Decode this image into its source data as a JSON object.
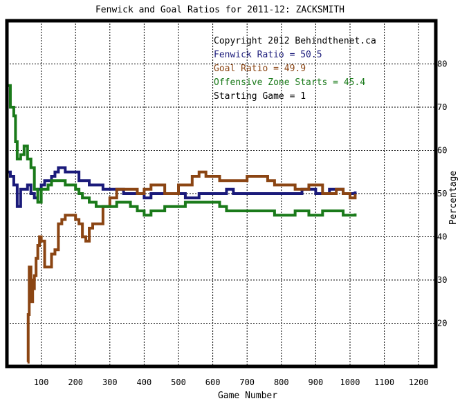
{
  "chart_data": {
    "type": "line",
    "title": "Fenwick and Goal Ratios for 2011-12: ZACKSMITH",
    "xlabel": "Game Number",
    "ylabel": "Percentage",
    "xlim": [
      0,
      1250
    ],
    "ylim": [
      10,
      90
    ],
    "x_ticks": [
      100,
      200,
      300,
      400,
      500,
      600,
      700,
      800,
      900,
      1000,
      1100,
      1200
    ],
    "x_tick_labels": [
      "100",
      "200",
      "300",
      "400",
      "500",
      "600",
      "700",
      "800",
      "900",
      "1000",
      "1100",
      "1200"
    ],
    "y_ticks": [
      20,
      30,
      40,
      50,
      60,
      70,
      80
    ],
    "y_tick_labels": [
      "20",
      "30",
      "40",
      "50",
      "60",
      "70",
      "80"
    ],
    "grid": true,
    "legend_position": "top-right",
    "annotations": [
      {
        "text": "Copyright 2012 Behindthenet.ca",
        "color": "#000000"
      },
      {
        "text": "Fenwick Ratio = 50.5",
        "color": "#1a1a7a"
      },
      {
        "text": "Goal Ratio = 49.9",
        "color": "#8b4513"
      },
      {
        "text": "Offensive Zone Starts = 45.4",
        "color": "#1a7a1a"
      },
      {
        "text": "Starting Game = 1",
        "color": "#000000"
      }
    ],
    "series": [
      {
        "name": "Fenwick Ratio",
        "color": "#1a1a7a",
        "x": [
          0,
          5,
          10,
          20,
          30,
          40,
          50,
          60,
          70,
          80,
          90,
          100,
          110,
          120,
          130,
          140,
          150,
          160,
          170,
          180,
          190,
          200,
          210,
          220,
          240,
          260,
          280,
          300,
          320,
          340,
          360,
          380,
          400,
          420,
          440,
          460,
          480,
          500,
          520,
          540,
          560,
          580,
          600,
          620,
          640,
          660,
          680,
          700,
          720,
          740,
          760,
          780,
          800,
          820,
          840,
          860,
          880,
          900,
          920,
          940,
          960,
          980,
          1000,
          1015
        ],
        "y": [
          55,
          55,
          54,
          52,
          47,
          51,
          51,
          52,
          50,
          49,
          51,
          52,
          53,
          53,
          54,
          55,
          56,
          56,
          55,
          55,
          55,
          55,
          53,
          53,
          52,
          52,
          51,
          51,
          51,
          50,
          50,
          50,
          49,
          50,
          50,
          50,
          50,
          50,
          49,
          49,
          50,
          50,
          50,
          50,
          51,
          50,
          50,
          50,
          50,
          50,
          50,
          50,
          50,
          50,
          50,
          51,
          51,
          50,
          50,
          51,
          51,
          50,
          50,
          50.5
        ]
      },
      {
        "name": "Goal Ratio",
        "color": "#8b4513",
        "x": [
          60,
          62,
          65,
          70,
          72,
          75,
          80,
          85,
          90,
          95,
          100,
          110,
          120,
          130,
          140,
          150,
          160,
          170,
          180,
          190,
          200,
          210,
          220,
          230,
          240,
          250,
          260,
          280,
          300,
          320,
          340,
          360,
          380,
          400,
          420,
          440,
          460,
          480,
          500,
          520,
          540,
          560,
          580,
          600,
          620,
          640,
          660,
          680,
          700,
          720,
          740,
          760,
          780,
          800,
          820,
          840,
          860,
          880,
          900,
          920,
          940,
          960,
          980,
          1000,
          1015
        ],
        "y": [
          11,
          22,
          33,
          30,
          25,
          28,
          31,
          35,
          38,
          40,
          39,
          33,
          33,
          36,
          37,
          43,
          44,
          45,
          45,
          45,
          44,
          43,
          40,
          39,
          42,
          43,
          43,
          47,
          49,
          51,
          51,
          51,
          50,
          51,
          52,
          52,
          50,
          50,
          52,
          52,
          54,
          55,
          54,
          54,
          53,
          53,
          53,
          53,
          54,
          54,
          54,
          53,
          52,
          52,
          52,
          51,
          51,
          52,
          52,
          50,
          50,
          51,
          50,
          49,
          49.9
        ]
      },
      {
        "name": "Offensive Zone Starts",
        "color": "#1a7a1a",
        "x": [
          0,
          5,
          10,
          20,
          25,
          30,
          40,
          50,
          60,
          70,
          80,
          90,
          100,
          110,
          120,
          130,
          140,
          150,
          160,
          170,
          180,
          190,
          200,
          210,
          220,
          240,
          260,
          280,
          300,
          320,
          340,
          360,
          380,
          400,
          420,
          440,
          460,
          480,
          500,
          520,
          540,
          560,
          580,
          600,
          620,
          640,
          660,
          680,
          700,
          720,
          740,
          760,
          780,
          800,
          820,
          840,
          860,
          880,
          900,
          920,
          940,
          960,
          980,
          1000,
          1015
        ],
        "y": [
          75,
          75,
          70,
          68,
          62,
          58,
          59,
          61,
          58,
          56,
          51,
          48,
          51,
          51,
          52,
          53,
          53,
          53,
          53,
          52,
          52,
          52,
          51,
          50,
          49,
          48,
          47,
          47,
          47,
          48,
          48,
          47,
          46,
          45,
          46,
          46,
          47,
          47,
          47,
          48,
          48,
          48,
          48,
          48,
          47,
          46,
          46,
          46,
          46,
          46,
          46,
          46,
          45,
          45,
          45,
          46,
          46,
          45,
          45,
          46,
          46,
          46,
          45,
          45,
          45.4
        ]
      }
    ]
  }
}
